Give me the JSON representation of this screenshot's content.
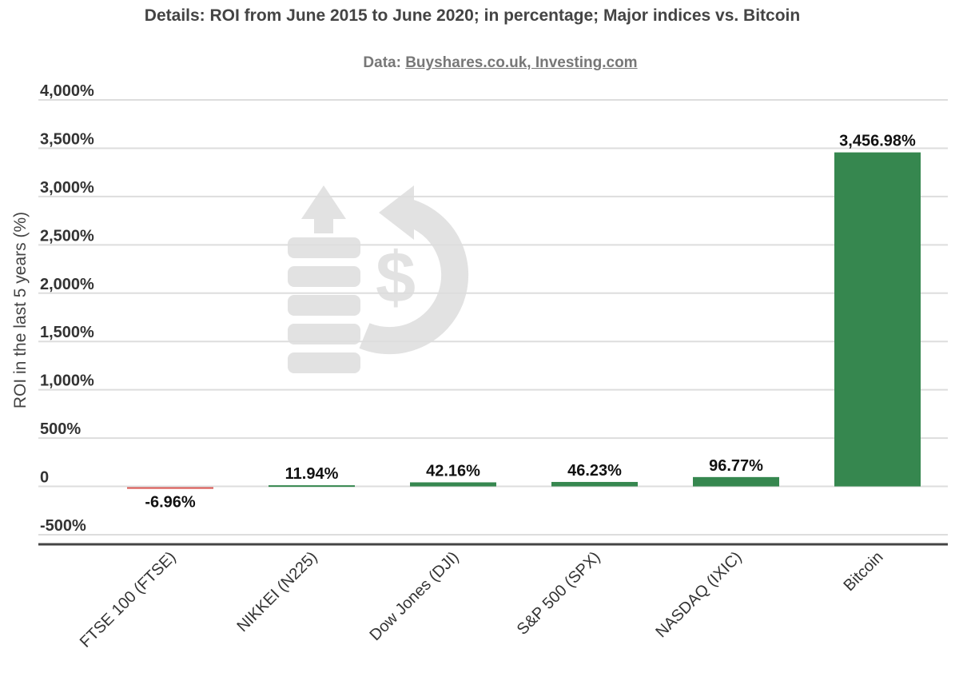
{
  "title": "Details: ROI from June 2015 to June 2020; in percentage; Major indices vs. Bitcoin",
  "subtitle_prefix": "Data: ",
  "subtitle_source": "Buyshares.co.uk, Investing.com",
  "chart_data": {
    "type": "bar",
    "categories": [
      "FTSE 100 (FTSE)",
      "NIKKEI (N225)",
      "Dow Jones (DJI)",
      "S&P 500 (SPX)",
      "NASDAQ (IXIC)",
      "Bitcoin"
    ],
    "values": [
      -6.96,
      11.94,
      42.16,
      46.23,
      96.77,
      3456.98
    ],
    "value_labels": [
      "-6.96%",
      "11.94%",
      "42.16%",
      "46.23%",
      "96.77%",
      "3,456.98%"
    ],
    "ylabel": "ROI in the last 5 years (%)",
    "ylim": [
      -500,
      4000
    ],
    "yticks": [
      4000,
      3500,
      3000,
      2500,
      2000,
      1500,
      1000,
      500,
      0,
      -500
    ],
    "ytick_labels": [
      "4,000%",
      "3,500%",
      "3,000%",
      "2,500%",
      "2,000%",
      "1,500%",
      "1,000%",
      "500%",
      "0",
      "-500%"
    ],
    "grid": true,
    "colors": {
      "positive": "#36874f",
      "negative": "#d9534f",
      "grid": "#dddddd",
      "baseline": "#444444"
    }
  }
}
